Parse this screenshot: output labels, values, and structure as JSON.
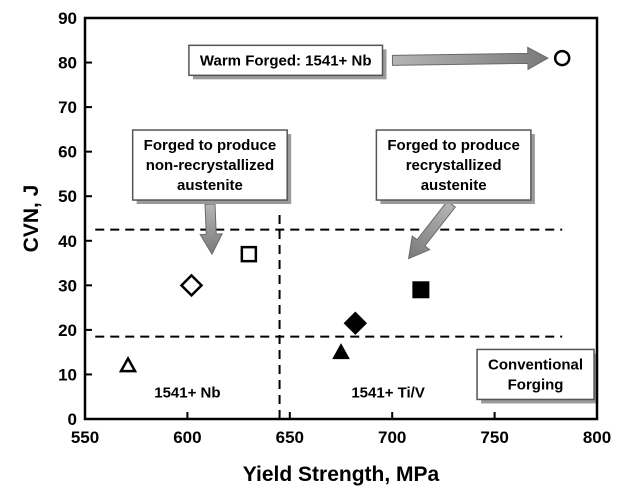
{
  "chart_data": {
    "type": "scatter",
    "xlabel": "Yield Strength, MPa",
    "ylabel": "CVN, J",
    "xlim": [
      550,
      800
    ],
    "ylim": [
      0,
      90
    ],
    "xticks": [
      550,
      600,
      650,
      700,
      750,
      800
    ],
    "yticks": [
      0,
      10,
      20,
      30,
      40,
      50,
      60,
      70,
      80,
      90
    ],
    "grid": false,
    "series": [
      {
        "marker": "open-triangle",
        "x": 571,
        "y": 12
      },
      {
        "marker": "open-diamond",
        "x": 602,
        "y": 30
      },
      {
        "marker": "open-square",
        "x": 630,
        "y": 37
      },
      {
        "marker": "filled-triangle",
        "x": 675,
        "y": 15
      },
      {
        "marker": "filled-diamond",
        "x": 682,
        "y": 21.5
      },
      {
        "marker": "filled-square",
        "x": 714,
        "y": 29
      },
      {
        "marker": "open-circle",
        "x": 783,
        "y": 81
      }
    ],
    "reference_lines": [
      {
        "orientation": "horizontal",
        "y": 42.5,
        "x_from": 555,
        "x_to": 783,
        "style": "dashed"
      },
      {
        "orientation": "horizontal",
        "y": 18.5,
        "x_from": 555,
        "x_to": 783,
        "style": "dashed"
      },
      {
        "orientation": "vertical",
        "x": 645,
        "y_from": 0,
        "y_to": 46,
        "style": "dashed"
      }
    ],
    "annotations": [
      {
        "id": "warm-forged",
        "lines": [
          "Warm Forged: 1541+ Nb"
        ],
        "x": 648,
        "y": 80.5,
        "arrow_to": [
          776,
          81
        ]
      },
      {
        "id": "non-recryst",
        "lines": [
          "Forged to produce",
          "non-recrystallized",
          "austenite"
        ],
        "x": 611,
        "y": 57,
        "arrow_to": [
          612,
          37
        ]
      },
      {
        "id": "recryst",
        "lines": [
          "Forged to produce",
          "recrystallized",
          "austenite"
        ],
        "x": 730,
        "y": 57,
        "arrow_to": [
          708,
          36
        ]
      },
      {
        "id": "conventional",
        "lines": [
          "Conventional",
          "Forging"
        ],
        "x": 770,
        "y": 10
      },
      {
        "id": "label-1541nb",
        "lines": [
          "1541+ Nb"
        ],
        "x": 600,
        "y": 6,
        "plain": true
      },
      {
        "id": "label-1541tiv",
        "lines": [
          "1541+ Ti/V"
        ],
        "x": 698,
        "y": 6,
        "plain": true
      }
    ]
  }
}
